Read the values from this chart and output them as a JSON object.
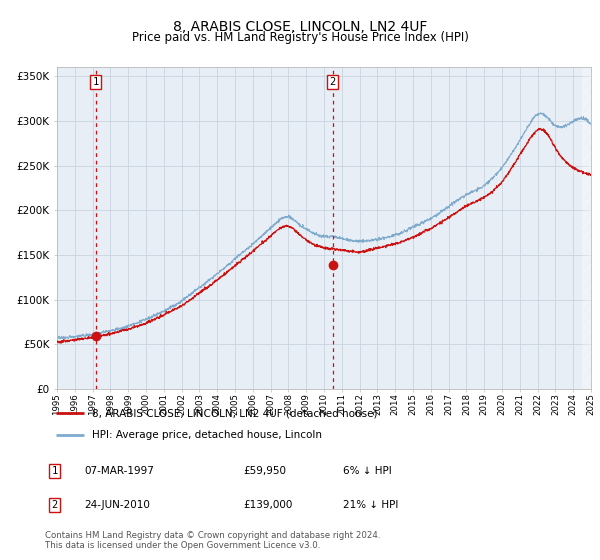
{
  "title": "8, ARABIS CLOSE, LINCOLN, LN2 4UF",
  "subtitle": "Price paid vs. HM Land Registry's House Price Index (HPI)",
  "title_fontsize": 10,
  "subtitle_fontsize": 8.5,
  "plot_bg_color": "#e8eef5",
  "grid_color": "#d0d8e4",
  "hpi_color": "#7eaacc",
  "price_color": "#cc1111",
  "marker_color": "#cc1111",
  "vline_color": "#cc1111",
  "x_start_year": 1995,
  "x_end_year": 2025,
  "ylim": [
    0,
    360000
  ],
  "yticks": [
    0,
    50000,
    100000,
    150000,
    200000,
    250000,
    300000,
    350000
  ],
  "purchase1_year": 1997.18,
  "purchase1_price": 59950,
  "purchase2_year": 2010.48,
  "purchase2_price": 139000,
  "legend_label1": "8, ARABIS CLOSE, LINCOLN, LN2 4UF (detached house)",
  "legend_label2": "HPI: Average price, detached house, Lincoln",
  "footnote": "Contains HM Land Registry data © Crown copyright and database right 2024.\nThis data is licensed under the Open Government Licence v3.0.",
  "table_row1": [
    "1",
    "07-MAR-1997",
    "£59,950",
    "6% ↓ HPI"
  ],
  "table_row2": [
    "2",
    "24-JUN-2010",
    "£139,000",
    "21% ↓ HPI"
  ]
}
